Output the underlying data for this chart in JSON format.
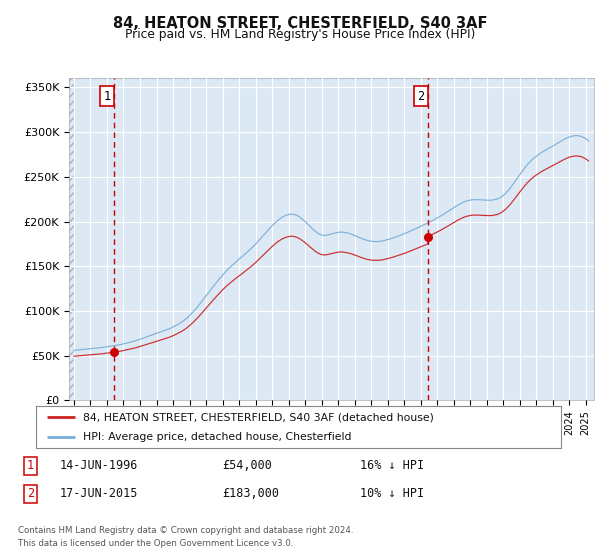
{
  "title": "84, HEATON STREET, CHESTERFIELD, S40 3AF",
  "subtitle": "Price paid vs. HM Land Registry's House Price Index (HPI)",
  "legend_line1": "84, HEATON STREET, CHESTERFIELD, S40 3AF (detached house)",
  "legend_line2": "HPI: Average price, detached house, Chesterfield",
  "annotation1_label": "1",
  "annotation1_date": "14-JUN-1996",
  "annotation1_price": 54000,
  "annotation1_pct": "16% ↓ HPI",
  "annotation1_year": 1996.45,
  "annotation2_label": "2",
  "annotation2_date": "17-JUN-2015",
  "annotation2_price": 183000,
  "annotation2_pct": "10% ↓ HPI",
  "annotation2_year": 2015.45,
  "sale1_year": 1996.45,
  "sale1_price": 54000,
  "sale2_year": 2015.45,
  "sale2_price": 183000,
  "hpi_color": "#7aaed6",
  "price_color": "#cc2222",
  "dot_color": "#cc0000",
  "vline_color": "#cc0000",
  "plot_bg": "#dce8f4",
  "hatch_color": "#b0bece",
  "grid_color": "#ffffff",
  "ylim": [
    0,
    360000
  ],
  "yticks": [
    0,
    50000,
    100000,
    150000,
    200000,
    250000,
    300000,
    350000
  ],
  "ytick_labels": [
    "£0",
    "£50K",
    "£100K",
    "£150K",
    "£200K",
    "£250K",
    "£300K",
    "£350K"
  ],
  "xlim_start": 1993.7,
  "xlim_end": 2025.5,
  "footer": "Contains HM Land Registry data © Crown copyright and database right 2024.\nThis data is licensed under the Open Government Licence v3.0."
}
